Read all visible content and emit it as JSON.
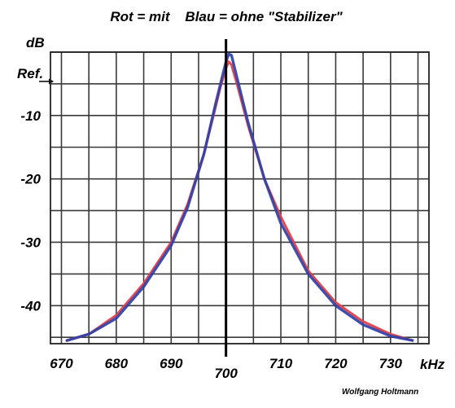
{
  "chart_data": {
    "type": "line",
    "title": "Rot = mit    Blau = ohne \"Stabilizer\"",
    "ylabel": "dB",
    "ref_label": "Ref.",
    "xlabel": "kHz",
    "author": "Wolfgang Holtmann",
    "xlim": [
      668,
      737
    ],
    "ylim": [
      -46,
      0
    ],
    "grid": true,
    "x_ticks": [
      670,
      680,
      690,
      700,
      710,
      720,
      730
    ],
    "x_tick_labels": [
      "670",
      "680",
      "690",
      "700",
      "710",
      "720",
      "730"
    ],
    "y_ticks": [
      -10,
      -20,
      -30,
      -40
    ],
    "y_tick_labels": [
      "-10",
      "-20",
      "-30",
      "-40"
    ],
    "center_marker_x": 700,
    "series": [
      {
        "name": "Rot = mit",
        "color": "#e0404a",
        "x": [
          671,
          675,
          680,
          685,
          690,
          693,
          696,
          698,
          699,
          700,
          700.5,
          701,
          702,
          704,
          707,
          710,
          715,
          720,
          725,
          730,
          734
        ],
        "y": [
          -45.5,
          -44.5,
          -41.5,
          -36.5,
          -30,
          -24,
          -16,
          -9,
          -5.5,
          -2.5,
          -1.5,
          -2,
          -5,
          -11.5,
          -20,
          -26,
          -34.5,
          -39.5,
          -42.5,
          -44.5,
          -45.5
        ]
      },
      {
        "name": "Blau = ohne \"Stabilizer\"",
        "color": "#3040a8",
        "x": [
          671,
          675,
          680,
          685,
          690,
          693,
          696,
          698,
          699,
          700,
          700.5,
          701,
          702,
          704,
          707,
          710,
          715,
          720,
          725,
          730,
          734
        ],
        "y": [
          -45.5,
          -44.5,
          -42,
          -37,
          -30.5,
          -24.5,
          -16,
          -8.5,
          -5,
          -1.5,
          -0.3,
          -0.5,
          -4,
          -11,
          -20,
          -27,
          -35,
          -40,
          -43,
          -44.8,
          -45.5
        ]
      }
    ]
  }
}
